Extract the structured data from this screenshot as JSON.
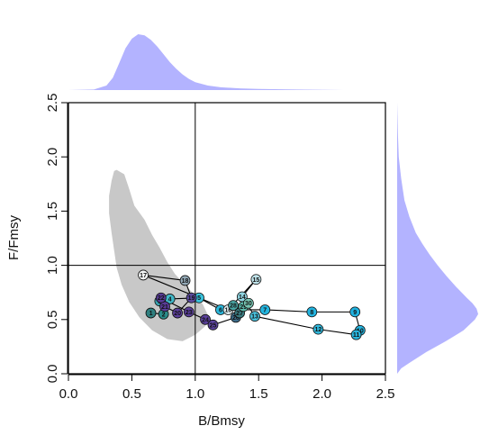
{
  "chart_data": {
    "type": "scatter",
    "xlabel": "B/Bmsy",
    "ylabel": "F/Fmsy",
    "xlim": [
      0,
      2.5
    ],
    "ylim": [
      0,
      2.5
    ],
    "xticks": [
      "0.0",
      "0.5",
      "1.0",
      "1.5",
      "2.0",
      "2.5"
    ],
    "yticks": [
      "0.0",
      "0.5",
      "1.0",
      "1.5",
      "2.0",
      "2.5"
    ],
    "reference_lines": {
      "x": 1.0,
      "y": 1.0
    },
    "colors": {
      "marginal_histogram": "#b3b3ff",
      "confidence_region": "#c8c8c8",
      "axis": "#000000"
    },
    "confidence_region": {
      "x": [
        0.38,
        0.44,
        0.48,
        0.52,
        0.6,
        0.66,
        0.72,
        0.78,
        0.84,
        0.92,
        1.0,
        1.06,
        1.1,
        1.08,
        1.0,
        0.9,
        0.78,
        0.66,
        0.56,
        0.48,
        0.42,
        0.38,
        0.36,
        0.34,
        0.32,
        0.32,
        0.34,
        0.36
      ],
      "y": [
        1.88,
        1.84,
        1.7,
        1.55,
        1.42,
        1.28,
        1.16,
        1.03,
        0.92,
        0.82,
        0.72,
        0.64,
        0.54,
        0.44,
        0.36,
        0.3,
        0.32,
        0.4,
        0.52,
        0.66,
        0.82,
        0.98,
        1.14,
        1.3,
        1.48,
        1.64,
        1.78,
        1.87
      ]
    },
    "marginal_x": {
      "x": [
        0.0,
        0.2,
        0.3,
        0.35,
        0.4,
        0.45,
        0.5,
        0.55,
        0.6,
        0.65,
        0.7,
        0.75,
        0.8,
        0.85,
        0.9,
        0.95,
        1.0,
        1.1,
        1.2,
        1.35,
        1.5,
        1.8,
        2.2,
        2.5
      ],
      "density": [
        0.0,
        0.01,
        0.08,
        0.22,
        0.48,
        0.75,
        0.92,
        1.0,
        0.98,
        0.9,
        0.78,
        0.64,
        0.5,
        0.38,
        0.28,
        0.2,
        0.14,
        0.08,
        0.05,
        0.03,
        0.02,
        0.01,
        0.0,
        0.0
      ]
    },
    "marginal_y": {
      "y": [
        0.0,
        0.05,
        0.1,
        0.2,
        0.3,
        0.4,
        0.5,
        0.55,
        0.6,
        0.65,
        0.7,
        0.8,
        0.9,
        1.0,
        1.1,
        1.2,
        1.3,
        1.45,
        1.6,
        1.8,
        2.0,
        2.2,
        2.5
      ],
      "density": [
        0.0,
        0.05,
        0.15,
        0.36,
        0.6,
        0.82,
        0.96,
        1.0,
        0.98,
        0.93,
        0.86,
        0.73,
        0.61,
        0.5,
        0.4,
        0.31,
        0.23,
        0.15,
        0.09,
        0.05,
        0.02,
        0.01,
        0.0
      ]
    },
    "trajectory": [
      {
        "label": "1",
        "x": 0.65,
        "y": 0.56,
        "color": "#2f7f7f"
      },
      {
        "label": "2",
        "x": 0.75,
        "y": 0.55,
        "color": "#2a8c8a"
      },
      {
        "label": "3",
        "x": 0.72,
        "y": 0.67,
        "color": "#3aa1b0"
      },
      {
        "label": "4",
        "x": 0.8,
        "y": 0.69,
        "color": "#41b7c7"
      },
      {
        "label": "5",
        "x": 1.03,
        "y": 0.7,
        "color": "#38c3dd"
      },
      {
        "label": "6",
        "x": 1.2,
        "y": 0.59,
        "color": "#2bb8dc"
      },
      {
        "label": "7",
        "x": 1.55,
        "y": 0.59,
        "color": "#25b5df"
      },
      {
        "label": "8",
        "x": 1.92,
        "y": 0.57,
        "color": "#22b4e0"
      },
      {
        "label": "9",
        "x": 2.26,
        "y": 0.57,
        "color": "#20b2e0"
      },
      {
        "label": "10",
        "x": 2.3,
        "y": 0.4,
        "color": "#23b4df"
      },
      {
        "label": "11",
        "x": 2.27,
        "y": 0.36,
        "color": "#29b6df"
      },
      {
        "label": "12",
        "x": 1.97,
        "y": 0.41,
        "color": "#31b9dd"
      },
      {
        "label": "13",
        "x": 1.47,
        "y": 0.53,
        "color": "#49c1dc"
      },
      {
        "label": "14",
        "x": 1.37,
        "y": 0.71,
        "color": "#8fd4e0"
      },
      {
        "label": "15",
        "x": 1.48,
        "y": 0.87,
        "color": "#bfe3ea"
      },
      {
        "label": "16",
        "x": 1.26,
        "y": 0.59,
        "color": "#dcecef"
      },
      {
        "label": "17",
        "x": 0.59,
        "y": 0.91,
        "color": "#f4f6f6"
      },
      {
        "label": "18",
        "x": 0.92,
        "y": 0.86,
        "color": "#93a9b7"
      },
      {
        "label": "19",
        "x": 0.97,
        "y": 0.7,
        "color": "#5a4a9c"
      },
      {
        "label": "20",
        "x": 0.86,
        "y": 0.56,
        "color": "#5c3f9c"
      },
      {
        "label": "21",
        "x": 0.76,
        "y": 0.62,
        "color": "#5a3d98"
      },
      {
        "label": "22",
        "x": 0.73,
        "y": 0.7,
        "color": "#573b96"
      },
      {
        "label": "23",
        "x": 0.95,
        "y": 0.57,
        "color": "#5a3f9a"
      },
      {
        "label": "24",
        "x": 1.08,
        "y": 0.5,
        "color": "#5b419c"
      },
      {
        "label": "25",
        "x": 1.14,
        "y": 0.45,
        "color": "#5d449f"
      },
      {
        "label": "26",
        "x": 1.32,
        "y": 0.52,
        "color": "#3d6d8a"
      },
      {
        "label": "27",
        "x": 1.35,
        "y": 0.56,
        "color": "#3a7b80"
      },
      {
        "label": "28",
        "x": 1.3,
        "y": 0.63,
        "color": "#4aa6a4"
      },
      {
        "label": "29",
        "x": 1.38,
        "y": 0.62,
        "color": "#5bb7a9"
      },
      {
        "label": "30",
        "x": 1.42,
        "y": 0.65,
        "color": "#78c5b2"
      }
    ]
  }
}
